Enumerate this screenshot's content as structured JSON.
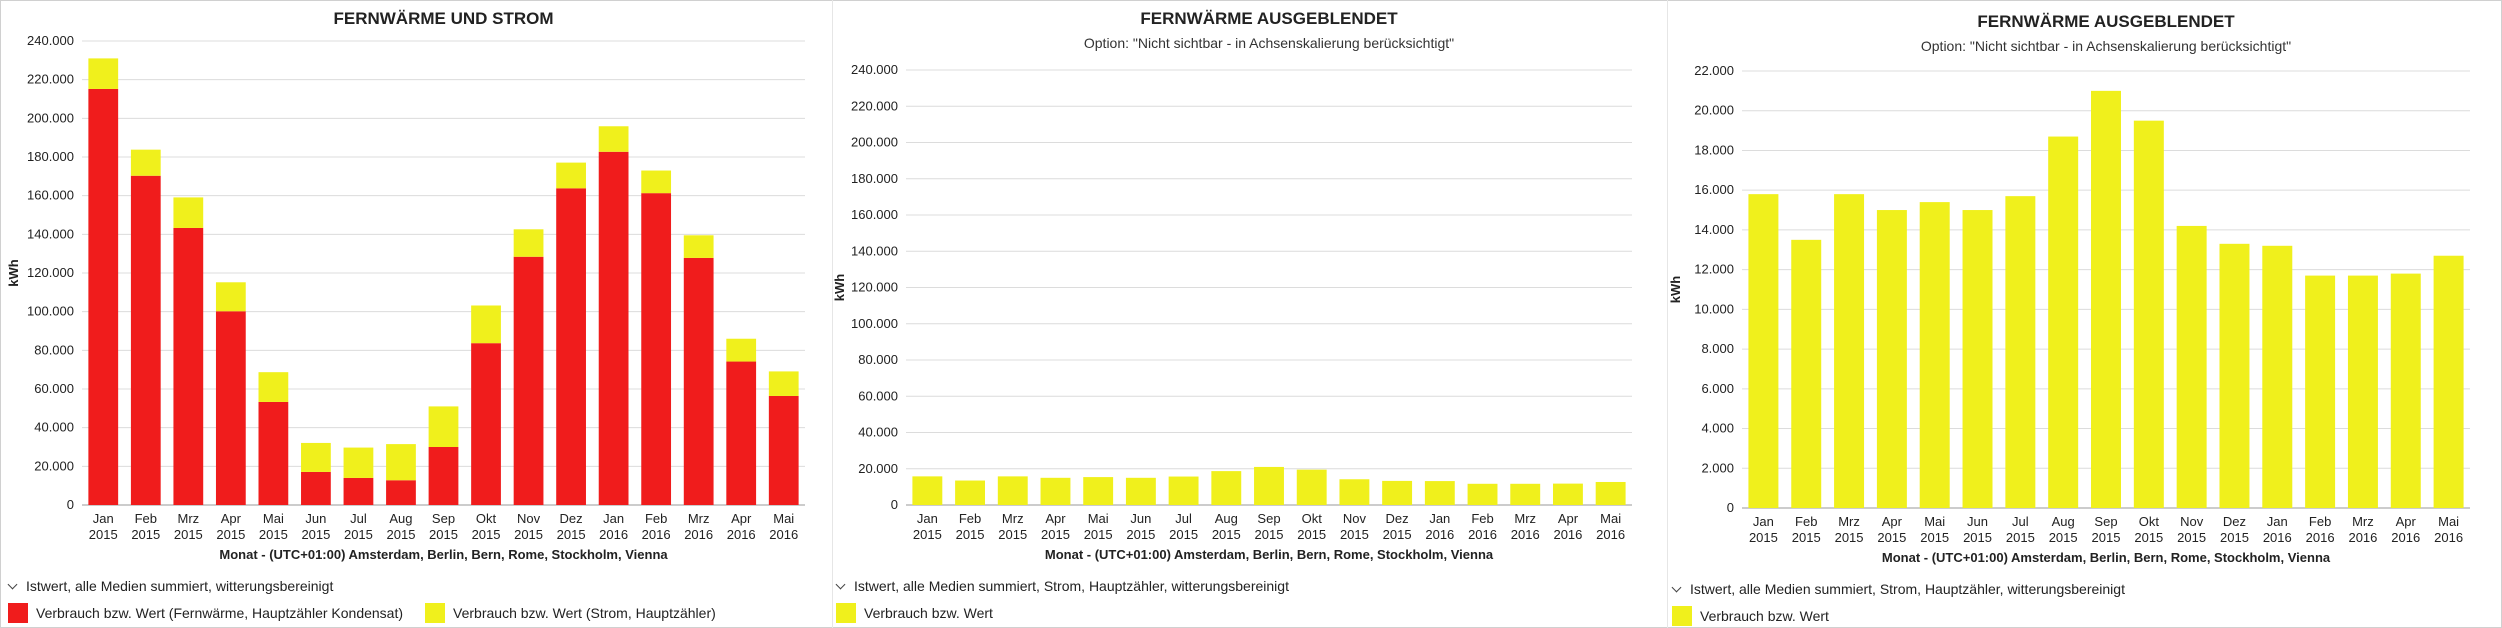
{
  "panels": [
    {
      "title": "FERNWÄRME UND STROM",
      "subtitle": "",
      "legend_header": "Istwert, alle Medien summiert, witterungsbereinigt",
      "legend_items": [
        {
          "label": "Verbrauch bzw. Wert (Fernwärme, Hauptzähler Kondensat)",
          "color": "#f01c1c"
        },
        {
          "label": "Verbrauch bzw. Wert (Strom, Hauptzähler)",
          "color": "#f0f01c"
        }
      ]
    },
    {
      "title": "FERNWÄRME AUSGEBLENDET",
      "subtitle": "Option: \"Nicht sichtbar - in Achsenskalierung berücksichtigt\"",
      "legend_header": "Istwert, alle Medien summiert, Strom, Hauptzähler, witterungsbereinigt",
      "legend_items": [
        {
          "label": "Verbrauch bzw. Wert",
          "color": "#f0f01c"
        }
      ]
    },
    {
      "title": "FERNWÄRME AUSGEBLENDET",
      "subtitle": "Option: \"Nicht sichtbar - in Achsenskalierung berücksichtigt\"",
      "legend_header": "Istwert, alle Medien summiert, Strom, Hauptzähler, witterungsbereinigt",
      "legend_items": [
        {
          "label": "Verbrauch bzw. Wert",
          "color": "#f0f01c"
        }
      ]
    }
  ],
  "chart_data": [
    {
      "type": "bar",
      "stacked": true,
      "title": "FERNWÄRME UND STROM",
      "xlabel": "Monat - (UTC+01:00) Amsterdam, Berlin, Bern, Rome, Stockholm, Vienna",
      "ylabel": "kWh",
      "ylim": [
        0,
        240000
      ],
      "yticks": [
        0,
        20000,
        40000,
        60000,
        80000,
        100000,
        120000,
        140000,
        160000,
        180000,
        200000,
        220000,
        240000
      ],
      "ytick_labels": [
        "0",
        "20.000",
        "40.000",
        "60.000",
        "80.000",
        "100.000",
        "120.000",
        "140.000",
        "160.000",
        "180.000",
        "200.000",
        "220.000",
        "240.000"
      ],
      "categories": [
        [
          "Jan",
          "2015"
        ],
        [
          "Feb",
          "2015"
        ],
        [
          "Mrz",
          "2015"
        ],
        [
          "Apr",
          "2015"
        ],
        [
          "Mai",
          "2015"
        ],
        [
          "Jun",
          "2015"
        ],
        [
          "Jul",
          "2015"
        ],
        [
          "Aug",
          "2015"
        ],
        [
          "Sep",
          "2015"
        ],
        [
          "Okt",
          "2015"
        ],
        [
          "Nov",
          "2015"
        ],
        [
          "Dez",
          "2015"
        ],
        [
          "Jan",
          "2016"
        ],
        [
          "Feb",
          "2016"
        ],
        [
          "Mrz",
          "2016"
        ],
        [
          "Apr",
          "2016"
        ],
        [
          "Mai",
          "2016"
        ]
      ],
      "series": [
        {
          "name": "Verbrauch bzw. Wert (Fernwärme, Hauptzähler Kondensat)",
          "color": "#f01c1c",
          "values": [
            215200,
            170300,
            143300,
            100200,
            53300,
            17100,
            14000,
            12800,
            30000,
            83700,
            128400,
            163800,
            182700,
            161300,
            127800,
            74200,
            56400
          ]
        },
        {
          "name": "Verbrauch bzw. Wert (Strom, Hauptzähler)",
          "color": "#f0f01c",
          "values": [
            15800,
            13500,
            15800,
            15000,
            15400,
            15000,
            15700,
            18700,
            21000,
            19500,
            14200,
            13300,
            13200,
            11700,
            11700,
            11800,
            12700
          ]
        }
      ],
      "grid": true,
      "legend": "bottom-left"
    },
    {
      "type": "bar",
      "title": "FERNWÄRME AUSGEBLENDET",
      "subtitle": "Option: \"Nicht sichtbar - in Achsenskalierung berücksichtigt\"",
      "xlabel": "Monat - (UTC+01:00) Amsterdam, Berlin, Bern, Rome, Stockholm, Vienna",
      "ylabel": "kWh",
      "ylim": [
        0,
        240000
      ],
      "yticks": [
        0,
        20000,
        40000,
        60000,
        80000,
        100000,
        120000,
        140000,
        160000,
        180000,
        200000,
        220000,
        240000
      ],
      "ytick_labels": [
        "0",
        "20.000",
        "40.000",
        "60.000",
        "80.000",
        "100.000",
        "120.000",
        "140.000",
        "160.000",
        "180.000",
        "200.000",
        "220.000",
        "240.000"
      ],
      "categories": [
        [
          "Jan",
          "2015"
        ],
        [
          "Feb",
          "2015"
        ],
        [
          "Mrz",
          "2015"
        ],
        [
          "Apr",
          "2015"
        ],
        [
          "Mai",
          "2015"
        ],
        [
          "Jun",
          "2015"
        ],
        [
          "Jul",
          "2015"
        ],
        [
          "Aug",
          "2015"
        ],
        [
          "Sep",
          "2015"
        ],
        [
          "Okt",
          "2015"
        ],
        [
          "Nov",
          "2015"
        ],
        [
          "Dez",
          "2015"
        ],
        [
          "Jan",
          "2016"
        ],
        [
          "Feb",
          "2016"
        ],
        [
          "Mrz",
          "2016"
        ],
        [
          "Apr",
          "2016"
        ],
        [
          "Mai",
          "2016"
        ]
      ],
      "series": [
        {
          "name": "Verbrauch bzw. Wert",
          "color": "#f0f01c",
          "values": [
            15800,
            13500,
            15800,
            15000,
            15400,
            15000,
            15700,
            18700,
            21000,
            19500,
            14200,
            13300,
            13200,
            11700,
            11700,
            11800,
            12700
          ]
        }
      ],
      "grid": true,
      "legend": "bottom-left"
    },
    {
      "type": "bar",
      "title": "FERNWÄRME AUSGEBLENDET",
      "subtitle": "Option: \"Nicht sichtbar - in Achsenskalierung berücksichtigt\"",
      "xlabel": "Monat - (UTC+01:00) Amsterdam, Berlin, Bern, Rome, Stockholm, Vienna",
      "ylabel": "kWh",
      "ylim": [
        0,
        22000
      ],
      "yticks": [
        0,
        2000,
        4000,
        6000,
        8000,
        10000,
        12000,
        14000,
        16000,
        18000,
        20000,
        22000
      ],
      "ytick_labels": [
        "0",
        "2.000",
        "4.000",
        "6.000",
        "8.000",
        "10.000",
        "12.000",
        "14.000",
        "16.000",
        "18.000",
        "20.000",
        "22.000"
      ],
      "categories": [
        [
          "Jan",
          "2015"
        ],
        [
          "Feb",
          "2015"
        ],
        [
          "Mrz",
          "2015"
        ],
        [
          "Apr",
          "2015"
        ],
        [
          "Mai",
          "2015"
        ],
        [
          "Jun",
          "2015"
        ],
        [
          "Jul",
          "2015"
        ],
        [
          "Aug",
          "2015"
        ],
        [
          "Sep",
          "2015"
        ],
        [
          "Okt",
          "2015"
        ],
        [
          "Nov",
          "2015"
        ],
        [
          "Dez",
          "2015"
        ],
        [
          "Jan",
          "2016"
        ],
        [
          "Feb",
          "2016"
        ],
        [
          "Mrz",
          "2016"
        ],
        [
          "Apr",
          "2016"
        ],
        [
          "Mai",
          "2016"
        ]
      ],
      "series": [
        {
          "name": "Verbrauch bzw. Wert",
          "color": "#f0f01c",
          "values": [
            15800,
            13500,
            15800,
            15000,
            15400,
            15000,
            15700,
            18700,
            21000,
            19500,
            14200,
            13300,
            13200,
            11700,
            11700,
            11800,
            12700
          ]
        }
      ],
      "grid": true,
      "legend": "bottom-left"
    }
  ]
}
